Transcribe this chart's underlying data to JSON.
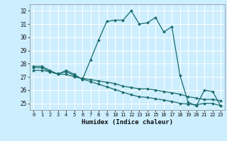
{
  "xlabel": "Humidex (Indice chaleur)",
  "bg_color": "#cceeff",
  "grid_color": "#ffffff",
  "line_color": "#1a6b6b",
  "xlim": [
    -0.5,
    23.5
  ],
  "ylim": [
    24.5,
    32.5
  ],
  "yticks": [
    25,
    26,
    27,
    28,
    29,
    30,
    31,
    32
  ],
  "xticks": [
    0,
    1,
    2,
    3,
    4,
    5,
    6,
    7,
    8,
    9,
    10,
    11,
    12,
    13,
    14,
    15,
    16,
    17,
    18,
    19,
    20,
    21,
    22,
    23
  ],
  "series1_x": [
    0,
    1,
    2,
    3,
    4,
    5,
    6,
    7,
    8,
    9,
    10,
    11,
    12,
    13,
    14,
    15,
    16,
    17,
    18,
    19,
    20,
    21,
    22,
    23
  ],
  "series1_y": [
    27.8,
    27.8,
    27.5,
    27.2,
    27.5,
    27.2,
    26.8,
    28.3,
    29.8,
    31.2,
    31.3,
    31.3,
    32.0,
    31.0,
    31.1,
    31.5,
    30.4,
    30.8,
    27.1,
    25.1,
    24.8,
    26.0,
    25.9,
    24.8
  ],
  "series2_x": [
    0,
    1,
    2,
    3,
    4,
    5,
    6,
    7,
    8,
    9,
    10,
    11,
    12,
    13,
    14,
    15,
    16,
    17,
    18,
    19,
    20,
    21,
    22,
    23
  ],
  "series2_y": [
    27.7,
    27.7,
    27.4,
    27.2,
    27.2,
    27.0,
    26.9,
    26.8,
    26.7,
    26.6,
    26.5,
    26.3,
    26.2,
    26.1,
    26.1,
    26.0,
    25.9,
    25.8,
    25.7,
    25.5,
    25.4,
    25.3,
    25.3,
    25.2
  ],
  "series3_x": [
    0,
    1,
    2,
    3,
    4,
    5,
    6,
    7,
    8,
    9,
    10,
    11,
    12,
    13,
    14,
    15,
    16,
    17,
    18,
    19,
    20,
    21,
    22,
    23
  ],
  "series3_y": [
    27.5,
    27.5,
    27.4,
    27.25,
    27.4,
    27.1,
    26.85,
    26.65,
    26.45,
    26.25,
    26.05,
    25.85,
    25.65,
    25.5,
    25.45,
    25.35,
    25.25,
    25.15,
    25.0,
    24.95,
    24.9,
    25.0,
    25.0,
    24.82
  ]
}
